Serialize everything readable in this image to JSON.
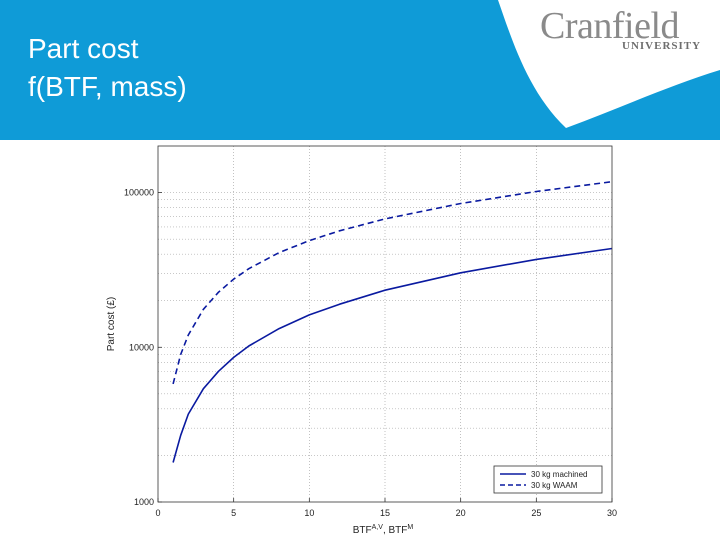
{
  "header": {
    "title_line1": "Part cost",
    "title_line2": "f(BTF, mass)",
    "background_color": "#0f9bd7"
  },
  "logo": {
    "name": "Cranfield",
    "subtitle": "UNIVERSITY",
    "color": "#8a8a8a"
  },
  "chart_data": {
    "type": "line",
    "title": "",
    "xlabel": "BTF",
    "xlabel_sup1": "A,V",
    "xlabel_sep": ", BTF",
    "xlabel_sup2": "M",
    "ylabel": "Part cost (£)",
    "xlim": [
      0,
      30
    ],
    "ylim": [
      1000,
      200000
    ],
    "yscale": "log",
    "grid": true,
    "legend_position": "bottom-right",
    "x_ticks": [
      "0",
      "5",
      "10",
      "15",
      "20",
      "25",
      "30"
    ],
    "y_ticks": [
      "1000",
      "10000",
      "100000"
    ],
    "series": [
      {
        "name": "30 kg machined",
        "style": "solid",
        "color": "#0a1aa0",
        "x": [
          1,
          1.5,
          2,
          3,
          4,
          5,
          6,
          8,
          10,
          12,
          15,
          20,
          25,
          30
        ],
        "y": [
          1800,
          2700,
          3700,
          5400,
          7000,
          8600,
          10200,
          13200,
          16200,
          19000,
          23400,
          30300,
          37000,
          43500
        ]
      },
      {
        "name": "30 kg WAAM",
        "style": "dashed",
        "color": "#0a1aa0",
        "x": [
          1,
          1.5,
          2,
          3,
          4,
          5,
          6,
          8,
          10,
          12,
          15,
          20,
          25,
          30
        ],
        "y": [
          5800,
          9000,
          12000,
          17600,
          22700,
          27600,
          32200,
          40900,
          48900,
          56600,
          67600,
          85000,
          101600,
          117500
        ]
      }
    ]
  }
}
